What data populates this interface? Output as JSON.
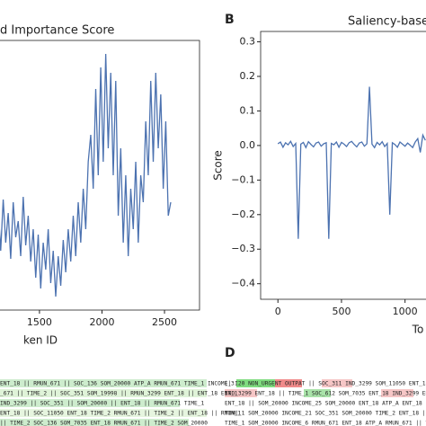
{
  "chart_data": [
    {
      "type": "line",
      "title": "d Importance Score",
      "xlabel": "ken ID",
      "color": "#4c72b0",
      "x": [
        1170,
        1190,
        1210,
        1230,
        1250,
        1270,
        1290,
        1310,
        1330,
        1350,
        1370,
        1390,
        1410,
        1430,
        1450,
        1470,
        1490,
        1510,
        1530,
        1550,
        1570,
        1590,
        1610,
        1630,
        1650,
        1670,
        1690,
        1710,
        1730,
        1750,
        1770,
        1790,
        1810,
        1830,
        1850,
        1870,
        1890,
        1910,
        1930,
        1950,
        1970,
        1990,
        2010,
        2030,
        2050,
        2070,
        2090,
        2110,
        2130,
        2150,
        2170,
        2190,
        2210,
        2230,
        2250,
        2270,
        2290,
        2310,
        2330,
        2350,
        2370,
        2390,
        2410,
        2430,
        2450,
        2470,
        2490,
        2510,
        2530,
        2550
      ],
      "values": [
        0.38,
        0.22,
        0.41,
        0.25,
        0.36,
        0.19,
        0.4,
        0.27,
        0.33,
        0.2,
        0.42,
        0.24,
        0.35,
        0.18,
        0.3,
        0.12,
        0.28,
        0.08,
        0.25,
        0.15,
        0.3,
        0.1,
        0.22,
        0.05,
        0.2,
        0.09,
        0.26,
        0.14,
        0.3,
        0.18,
        0.35,
        0.2,
        0.4,
        0.25,
        0.45,
        0.3,
        0.55,
        0.65,
        0.45,
        0.82,
        0.5,
        0.9,
        0.55,
        0.95,
        0.6,
        0.88,
        0.5,
        0.85,
        0.35,
        0.6,
        0.25,
        0.5,
        0.2,
        0.45,
        0.3,
        0.55,
        0.25,
        0.5,
        0.4,
        0.7,
        0.5,
        0.85,
        0.55,
        0.88,
        0.6,
        0.8,
        0.45,
        0.7,
        0.35,
        0.4
      ],
      "xlim": [
        1170,
        2780
      ],
      "ylim": [
        0,
        1
      ],
      "xticks": [
        1500,
        2000,
        2500
      ],
      "yticks": []
    },
    {
      "type": "line",
      "panel": "B",
      "title": "Saliency-base",
      "xlabel": "To",
      "ylabel": "Score",
      "color": "#4c72b0",
      "x": [
        0,
        20,
        40,
        60,
        80,
        100,
        120,
        140,
        160,
        180,
        200,
        220,
        240,
        260,
        280,
        300,
        320,
        340,
        360,
        380,
        400,
        420,
        440,
        460,
        480,
        500,
        520,
        540,
        560,
        580,
        600,
        620,
        640,
        660,
        680,
        700,
        720,
        740,
        760,
        780,
        800,
        820,
        840,
        860,
        880,
        900,
        920,
        940,
        960,
        980,
        1000,
        1020,
        1040,
        1060,
        1080,
        1100,
        1120,
        1140,
        1160
      ],
      "values": [
        0.005,
        0.01,
        -0.005,
        0.008,
        0.002,
        0.012,
        -0.003,
        0.006,
        -0.27,
        0.004,
        0.009,
        -0.006,
        0.011,
        0.003,
        -0.004,
        0.007,
        0.01,
        -0.002,
        0.005,
        0.008,
        -0.27,
        0.006,
        0.002,
        0.01,
        -0.005,
        0.009,
        0.004,
        -0.003,
        0.008,
        0.012,
        0.003,
        -0.004,
        0.007,
        0.01,
        -0.002,
        0.005,
        0.17,
        0.004,
        -0.006,
        0.009,
        0.002,
        0.011,
        -0.003,
        0.006,
        -0.2,
        0.008,
        0.003,
        -0.005,
        0.01,
        0.004,
        -0.002,
        0.007,
        0.001,
        -0.006,
        0.01,
        0.02,
        -0.02,
        0.03,
        0.015
      ],
      "xlim": [
        -136,
        1179
      ],
      "ylim": [
        -0.445,
        0.33
      ],
      "xticks": [
        0,
        500,
        1000
      ],
      "yticks": [
        0.3,
        0.2,
        0.1,
        {
          "value": 0,
          "label": "0.0"
        },
        {
          "value": -0.1,
          "label": "−0.1"
        },
        {
          "value": -0.2,
          "label": "−0.2"
        },
        {
          "value": -0.3,
          "label": "−0.3"
        },
        {
          "value": -0.4,
          "label": "−0.4"
        }
      ]
    }
  ],
  "panel_c": {
    "lines": [
      "ENT_18 || RMUN_671 || SOC_136 SOM_20000 ATP_A RMUN_671 TIME_1 INCOME_3",
      "_671 || TIME_2 || SOC_351 SOM_19998 || RMUN_3299 ENT_18 || ENT_18 ENT_1",
      "IND_3299 || SOC_351 || SOM_20000 || ENT_18 || RMUN_671 TIME_1",
      "ENT_18 || SOC_11050 ENT_18 TIME_2 RMUN_671 || TIME_2 || ENT_18 || RMUN_1",
      "|| TIME_2 SOC_136 SOM_7035 ENT_18 RMUN_671 || TIME_2 SOM_20000"
    ]
  },
  "panel_d": {
    "label": "D",
    "lines": [
      "|| I20 NON_URGENT OUTPAT || SOC_311 IND_3299 SOM_11050 ENT_18",
      "IND_3299 ENT_18 || TIME_1 SOC_612 SOM_7035 ENT_18 IND_3299 ENT_18",
      "ENT_18 || SOM_20000 INCOME_25 SOM_20000 ENT_18 ATP_A ENT_18 || SOC_3",
      "TIME_1 SOM_20000 INCOME_21 SOC_351 SOM_20000 TIME_2 ENT_18 ||",
      "TIME_1 SOM_20000 INCOME_6 RMUN_671 ENT_18 ATP_A RMUN_671 || TIME_2"
    ]
  }
}
